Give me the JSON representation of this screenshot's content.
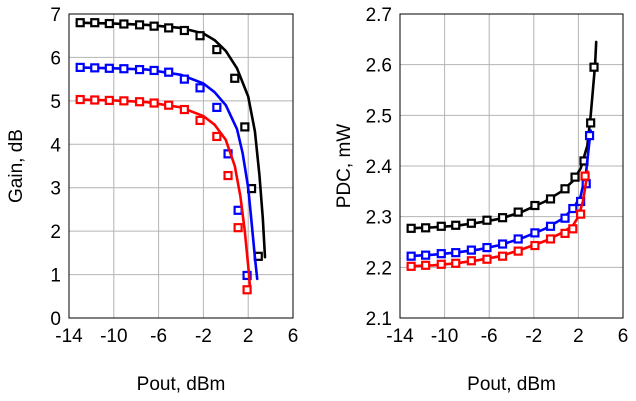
{
  "chart_data": [
    {
      "type": "line",
      "title": "",
      "xlabel": "Pout, dBm",
      "ylabel": "Gain, dB",
      "xlim": [
        -14,
        6
      ],
      "ylim": [
        0,
        7
      ],
      "xticks": [
        "-14",
        "-10",
        "-6",
        "-2",
        "2",
        "6"
      ],
      "yticks": [
        "0",
        "1",
        "2",
        "3",
        "4",
        "5",
        "6",
        "7"
      ],
      "grid": true,
      "legend": "none",
      "series": [
        {
          "color": "#000000",
          "line": [
            [
              -13.3,
              6.8
            ],
            [
              -10,
              6.78
            ],
            [
              -7,
              6.75
            ],
            [
              -4,
              6.68
            ],
            [
              -2,
              6.55
            ],
            [
              -1,
              6.4
            ],
            [
              0,
              6.15
            ],
            [
              1,
              5.75
            ],
            [
              2,
              5.1
            ],
            [
              2.6,
              4.3
            ],
            [
              3.0,
              3.3
            ],
            [
              3.3,
              2.3
            ],
            [
              3.5,
              1.4
            ]
          ],
          "markers": [
            [
              -13,
              6.8
            ],
            [
              -11.7,
              6.8
            ],
            [
              -10.4,
              6.78
            ],
            [
              -9.1,
              6.77
            ],
            [
              -7.7,
              6.75
            ],
            [
              -6.4,
              6.72
            ],
            [
              -5.1,
              6.68
            ],
            [
              -3.7,
              6.62
            ],
            [
              -2.3,
              6.5
            ],
            [
              -0.8,
              6.18
            ],
            [
              0.8,
              5.52
            ],
            [
              1.7,
              4.4
            ],
            [
              2.3,
              2.98
            ],
            [
              2.9,
              1.42
            ]
          ]
        },
        {
          "color": "#0000ff",
          "line": [
            [
              -13.3,
              5.77
            ],
            [
              -10,
              5.75
            ],
            [
              -7,
              5.72
            ],
            [
              -4,
              5.6
            ],
            [
              -2,
              5.4
            ],
            [
              -1,
              5.2
            ],
            [
              0,
              4.9
            ],
            [
              1,
              4.35
            ],
            [
              1.5,
              3.8
            ],
            [
              2.0,
              3.0
            ],
            [
              2.3,
              2.2
            ],
            [
              2.6,
              1.4
            ],
            [
              2.8,
              0.9
            ]
          ],
          "markers": [
            [
              -13,
              5.77
            ],
            [
              -11.7,
              5.76
            ],
            [
              -10.4,
              5.75
            ],
            [
              -9.1,
              5.74
            ],
            [
              -7.7,
              5.72
            ],
            [
              -6.4,
              5.7
            ],
            [
              -5.1,
              5.66
            ],
            [
              -3.7,
              5.5
            ],
            [
              -2.3,
              5.3
            ],
            [
              -0.8,
              4.85
            ],
            [
              0.2,
              3.78
            ],
            [
              1.1,
              2.48
            ],
            [
              1.9,
              0.98
            ]
          ]
        },
        {
          "color": "#ff0000",
          "line": [
            [
              -13.3,
              5.03
            ],
            [
              -10,
              5.01
            ],
            [
              -7,
              4.97
            ],
            [
              -4,
              4.85
            ],
            [
              -2,
              4.65
            ],
            [
              -1,
              4.45
            ],
            [
              0,
              4.1
            ],
            [
              0.8,
              3.5
            ],
            [
              1.3,
              2.8
            ],
            [
              1.7,
              2.0
            ],
            [
              2.0,
              1.2
            ],
            [
              2.2,
              0.6
            ]
          ],
          "markers": [
            [
              -13,
              5.03
            ],
            [
              -11.7,
              5.02
            ],
            [
              -10.4,
              5.01
            ],
            [
              -9.1,
              5.0
            ],
            [
              -7.7,
              4.98
            ],
            [
              -6.4,
              4.95
            ],
            [
              -5.1,
              4.9
            ],
            [
              -3.7,
              4.8
            ],
            [
              -2.3,
              4.55
            ],
            [
              -0.8,
              4.18
            ],
            [
              0.2,
              3.28
            ],
            [
              1.1,
              2.08
            ],
            [
              1.9,
              0.65
            ]
          ]
        }
      ]
    },
    {
      "type": "line",
      "title": "",
      "xlabel": "Pout, dBm",
      "ylabel": "PDC, mW",
      "xlim": [
        -14,
        6
      ],
      "ylim": [
        2.1,
        2.7
      ],
      "xticks": [
        "-14",
        "-10",
        "-6",
        "-2",
        "2",
        "6"
      ],
      "yticks": [
        "2.1",
        "2.2",
        "2.3",
        "2.4",
        "2.5",
        "2.6",
        "2.7"
      ],
      "grid": true,
      "legend": "none",
      "series": [
        {
          "color": "#000000",
          "line": [
            [
              -13.3,
              2.277
            ],
            [
              -11,
              2.279
            ],
            [
              -9,
              2.282
            ],
            [
              -7,
              2.288
            ],
            [
              -5,
              2.296
            ],
            [
              -3,
              2.31
            ],
            [
              -1,
              2.33
            ],
            [
              0.5,
              2.35
            ],
            [
              1.5,
              2.37
            ],
            [
              2.2,
              2.395
            ],
            [
              2.8,
              2.44
            ],
            [
              3.1,
              2.5
            ],
            [
              3.3,
              2.55
            ],
            [
              3.5,
              2.6
            ],
            [
              3.6,
              2.645
            ]
          ],
          "markers": [
            [
              -13,
              2.277
            ],
            [
              -11.7,
              2.278
            ],
            [
              -10.3,
              2.281
            ],
            [
              -9,
              2.283
            ],
            [
              -7.6,
              2.287
            ],
            [
              -6.2,
              2.293
            ],
            [
              -4.8,
              2.298
            ],
            [
              -3.4,
              2.309
            ],
            [
              -1.9,
              2.322
            ],
            [
              -0.5,
              2.335
            ],
            [
              0.8,
              2.355
            ],
            [
              1.7,
              2.378
            ],
            [
              2.5,
              2.41
            ],
            [
              3.1,
              2.485
            ],
            [
              3.4,
              2.595
            ]
          ]
        },
        {
          "color": "#0000ff",
          "line": [
            [
              -13.3,
              2.222
            ],
            [
              -11,
              2.225
            ],
            [
              -9,
              2.229
            ],
            [
              -7,
              2.235
            ],
            [
              -5,
              2.244
            ],
            [
              -3,
              2.258
            ],
            [
              -1,
              2.276
            ],
            [
              0.5,
              2.295
            ],
            [
              1.5,
              2.315
            ],
            [
              2.2,
              2.34
            ],
            [
              2.7,
              2.39
            ],
            [
              3.0,
              2.45
            ],
            [
              3.1,
              2.47
            ]
          ],
          "markers": [
            [
              -13,
              2.222
            ],
            [
              -11.7,
              2.224
            ],
            [
              -10.3,
              2.227
            ],
            [
              -9,
              2.229
            ],
            [
              -7.6,
              2.234
            ],
            [
              -6.2,
              2.239
            ],
            [
              -4.8,
              2.246
            ],
            [
              -3.4,
              2.256
            ],
            [
              -1.9,
              2.268
            ],
            [
              -0.5,
              2.281
            ],
            [
              0.8,
              2.297
            ],
            [
              1.5,
              2.316
            ],
            [
              2.2,
              2.33
            ],
            [
              2.7,
              2.365
            ],
            [
              3.0,
              2.46
            ]
          ]
        },
        {
          "color": "#ff0000",
          "line": [
            [
              -13.3,
              2.202
            ],
            [
              -11,
              2.204
            ],
            [
              -9,
              2.208
            ],
            [
              -7,
              2.214
            ],
            [
              -5,
              2.222
            ],
            [
              -3,
              2.236
            ],
            [
              -1,
              2.252
            ],
            [
              0.5,
              2.268
            ],
            [
              1.5,
              2.282
            ],
            [
              2.0,
              2.3
            ],
            [
              2.4,
              2.33
            ],
            [
              2.7,
              2.37
            ],
            [
              2.8,
              2.39
            ]
          ],
          "markers": [
            [
              -13,
              2.202
            ],
            [
              -11.7,
              2.204
            ],
            [
              -10.3,
              2.206
            ],
            [
              -9,
              2.208
            ],
            [
              -7.6,
              2.213
            ],
            [
              -6.2,
              2.216
            ],
            [
              -4.8,
              2.222
            ],
            [
              -3.4,
              2.232
            ],
            [
              -1.9,
              2.243
            ],
            [
              -0.5,
              2.256
            ],
            [
              0.8,
              2.267
            ],
            [
              1.5,
              2.276
            ],
            [
              2.2,
              2.305
            ],
            [
              2.6,
              2.38
            ]
          ]
        }
      ]
    }
  ]
}
